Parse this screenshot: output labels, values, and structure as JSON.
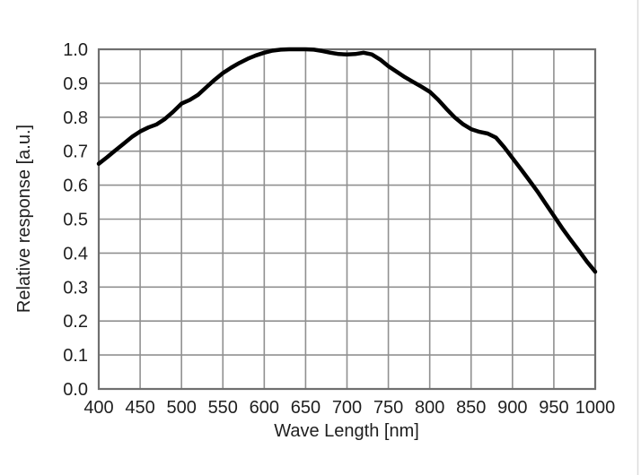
{
  "figure": {
    "background_color": "#ffffff",
    "scan_border_color": "#dcdcdc"
  },
  "chart_data": {
    "type": "line",
    "title": "",
    "xlabel": "Wave Length [nm]",
    "ylabel": "Relative response [a.u.]",
    "xlim": [
      400,
      1000
    ],
    "ylim": [
      0.0,
      1.0
    ],
    "x_ticks": [
      400,
      450,
      500,
      550,
      600,
      650,
      700,
      750,
      800,
      850,
      900,
      950,
      1000
    ],
    "y_tick_labels": [
      "0.0",
      "0.1",
      "0.2",
      "0.3",
      "0.4",
      "0.5",
      "0.6",
      "0.7",
      "0.8",
      "0.9",
      "1.0"
    ],
    "grid": true,
    "legend": "none",
    "line_color": "#000000",
    "grid_color": "#909090",
    "axis_color": "#6f6f6f",
    "series": [
      {
        "name": "relative-response",
        "x": [
          400,
          410,
          420,
          430,
          440,
          450,
          460,
          470,
          480,
          490,
          500,
          510,
          520,
          530,
          540,
          550,
          560,
          570,
          580,
          590,
          600,
          610,
          620,
          630,
          640,
          650,
          660,
          670,
          680,
          690,
          700,
          710,
          720,
          730,
          740,
          750,
          760,
          770,
          780,
          790,
          800,
          810,
          820,
          830,
          840,
          850,
          860,
          870,
          880,
          890,
          900,
          910,
          920,
          930,
          940,
          950,
          960,
          970,
          980,
          990,
          1000
        ],
        "y": [
          0.663,
          0.682,
          0.702,
          0.722,
          0.742,
          0.758,
          0.77,
          0.779,
          0.795,
          0.816,
          0.84,
          0.851,
          0.866,
          0.888,
          0.91,
          0.93,
          0.946,
          0.96,
          0.972,
          0.982,
          0.99,
          0.996,
          0.999,
          1.0,
          1.0,
          1.0,
          0.999,
          0.995,
          0.99,
          0.986,
          0.985,
          0.986,
          0.99,
          0.985,
          0.97,
          0.95,
          0.934,
          0.918,
          0.904,
          0.89,
          0.875,
          0.852,
          0.825,
          0.8,
          0.78,
          0.765,
          0.757,
          0.752,
          0.74,
          0.712,
          0.68,
          0.648,
          0.615,
          0.582,
          0.546,
          0.51,
          0.474,
          0.44,
          0.408,
          0.375,
          0.345
        ]
      }
    ]
  }
}
